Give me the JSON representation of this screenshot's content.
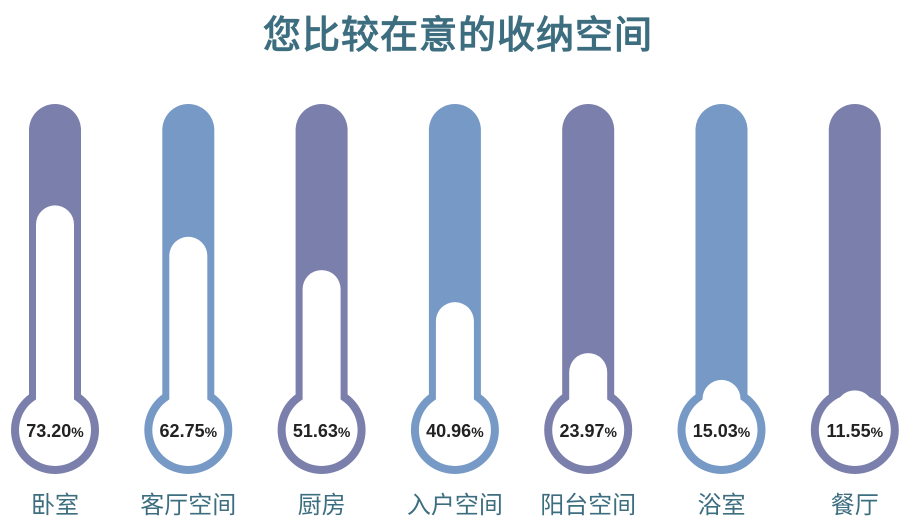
{
  "title": "您比较在意的收纳空间",
  "colors": {
    "purple": "#7b7fab",
    "blue": "#7799c6",
    "title": "#3d6e80",
    "label": "#3d6e80",
    "value_text": "#222222"
  },
  "chart_data": {
    "type": "bar",
    "title": "您比较在意的收纳空间",
    "unit": "%",
    "ylim": [
      0,
      100
    ],
    "categories": [
      "卧室",
      "客厅空间",
      "厨房",
      "入户空间",
      "阳台空间",
      "浴室",
      "餐厅"
    ],
    "values": [
      73.2,
      62.75,
      51.63,
      40.96,
      23.97,
      15.03,
      11.55
    ],
    "labels": [
      "73.20",
      "62.75",
      "51.63",
      "40.96",
      "23.97",
      "15.03",
      "11.55"
    ],
    "bar_colors": [
      "#7b7fab",
      "#7799c6",
      "#7b7fab",
      "#7799c6",
      "#7b7fab",
      "#7799c6",
      "#7b7fab"
    ]
  }
}
